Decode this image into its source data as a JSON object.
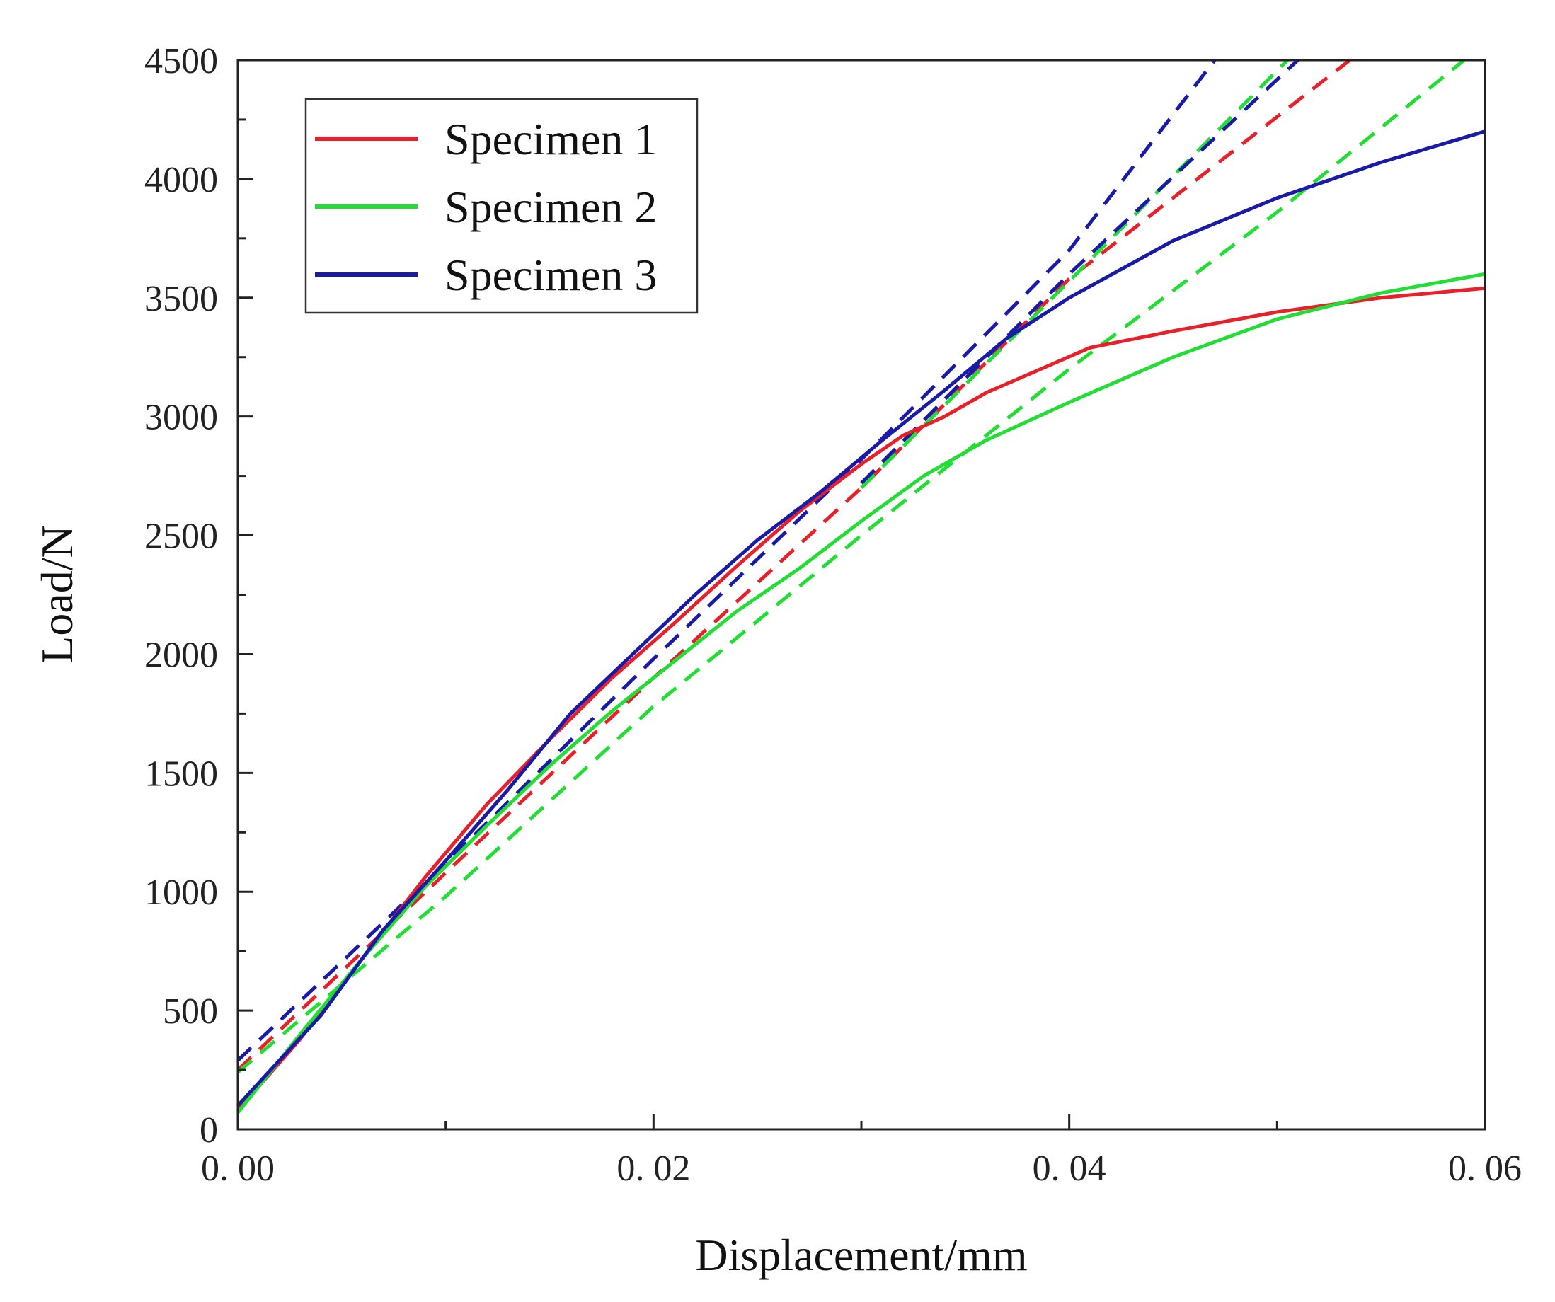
{
  "chart_data": {
    "type": "line",
    "title": "",
    "xlabel": "Displacement/mm",
    "ylabel": "Load/N",
    "xlim": [
      0,
      0.06
    ],
    "ylim": [
      0,
      4500
    ],
    "x_ticks": [
      {
        "value": 0,
        "label": "0. 00"
      },
      {
        "value": 0.02,
        "label": "0. 02"
      },
      {
        "value": 0.04,
        "label": "0. 04"
      },
      {
        "value": 0.06,
        "label": "0. 06"
      }
    ],
    "y_ticks": [
      {
        "value": 0,
        "label": "0"
      },
      {
        "value": 500,
        "label": "500"
      },
      {
        "value": 1000,
        "label": "1000"
      },
      {
        "value": 1500,
        "label": "1500"
      },
      {
        "value": 2000,
        "label": "2000"
      },
      {
        "value": 2500,
        "label": "2500"
      },
      {
        "value": 3000,
        "label": "3000"
      },
      {
        "value": 3500,
        "label": "3500"
      },
      {
        "value": 4000,
        "label": "4000"
      },
      {
        "value": 4500,
        "label": "4500"
      }
    ],
    "legend_position": "top-left",
    "series": [
      {
        "name": "Specimen 1",
        "color": "#e8202a",
        "style": "solid",
        "points": [
          [
            0,
            80
          ],
          [
            0.003,
            380
          ],
          [
            0.006,
            720
          ],
          [
            0.009,
            1060
          ],
          [
            0.012,
            1370
          ],
          [
            0.015,
            1640
          ],
          [
            0.018,
            1900
          ],
          [
            0.021,
            2130
          ],
          [
            0.024,
            2370
          ],
          [
            0.027,
            2600
          ],
          [
            0.03,
            2800
          ],
          [
            0.032,
            2920
          ],
          [
            0.034,
            3000
          ],
          [
            0.036,
            3100
          ],
          [
            0.041,
            3290
          ],
          [
            0.045,
            3360
          ],
          [
            0.05,
            3440
          ],
          [
            0.055,
            3500
          ],
          [
            0.06,
            3540
          ]
        ]
      },
      {
        "name": "Specimen 2",
        "color": "#22dd33",
        "style": "solid",
        "points": [
          [
            0,
            70
          ],
          [
            0.003,
            400
          ],
          [
            0.006,
            720
          ],
          [
            0.009,
            1020
          ],
          [
            0.012,
            1280
          ],
          [
            0.015,
            1530
          ],
          [
            0.018,
            1760
          ],
          [
            0.021,
            1970
          ],
          [
            0.024,
            2180
          ],
          [
            0.027,
            2360
          ],
          [
            0.03,
            2560
          ],
          [
            0.033,
            2750
          ],
          [
            0.036,
            2900
          ],
          [
            0.04,
            3060
          ],
          [
            0.045,
            3250
          ],
          [
            0.05,
            3410
          ],
          [
            0.055,
            3520
          ],
          [
            0.06,
            3600
          ]
        ]
      },
      {
        "name": "Specimen 3",
        "color": "#1a1aa8",
        "style": "solid",
        "points": [
          [
            0,
            100
          ],
          [
            0.004,
            480
          ],
          [
            0.007,
            840
          ],
          [
            0.01,
            1130
          ],
          [
            0.013,
            1430
          ],
          [
            0.016,
            1750
          ],
          [
            0.019,
            2000
          ],
          [
            0.022,
            2250
          ],
          [
            0.025,
            2480
          ],
          [
            0.028,
            2680
          ],
          [
            0.031,
            2900
          ],
          [
            0.034,
            3110
          ],
          [
            0.037,
            3330
          ],
          [
            0.04,
            3500
          ],
          [
            0.045,
            3740
          ],
          [
            0.05,
            3920
          ],
          [
            0.055,
            4070
          ],
          [
            0.06,
            4200
          ]
        ]
      },
      {
        "name": "Specimen 1 fit",
        "color": "#e8202a",
        "style": "dashed",
        "points": [
          [
            0,
            250
          ],
          [
            0.01,
            1080
          ],
          [
            0.02,
            1900
          ],
          [
            0.03,
            2700
          ],
          [
            0.04,
            3580
          ],
          [
            0.0535,
            4500
          ]
        ]
      },
      {
        "name": "Specimen 2 fit",
        "color": "#22dd33",
        "style": "dashed",
        "points": [
          [
            0,
            240
          ],
          [
            0.01,
            980
          ],
          [
            0.02,
            1780
          ],
          [
            0.03,
            2500
          ],
          [
            0.04,
            3200
          ],
          [
            0.05,
            3860
          ],
          [
            0.059,
            4500
          ]
        ]
      },
      {
        "name": "Specimen 3 fit",
        "color": "#1a1aa8",
        "style": "dashed",
        "points": [
          [
            0,
            290
          ],
          [
            0.01,
            1120
          ],
          [
            0.02,
            1980
          ],
          [
            0.03,
            2820
          ],
          [
            0.04,
            3700
          ],
          [
            0.047,
            4500
          ]
        ]
      },
      {
        "name": "Specimen 2 fit (upper)",
        "color": "#22dd33",
        "style": "dashed",
        "points": [
          [
            0.03,
            2700
          ],
          [
            0.04,
            3570
          ],
          [
            0.0505,
            4500
          ]
        ]
      },
      {
        "name": "Specimen 3 fit (upper)",
        "color": "#1a1aa8",
        "style": "dashed",
        "points": [
          [
            0.03,
            2720
          ],
          [
            0.04,
            3600
          ],
          [
            0.051,
            4500
          ]
        ]
      }
    ],
    "legend": [
      {
        "label": "Specimen 1",
        "color": "#e8202a"
      },
      {
        "label": "Specimen 2",
        "color": "#22dd33"
      },
      {
        "label": "Specimen 3",
        "color": "#1a1aa8"
      }
    ]
  }
}
